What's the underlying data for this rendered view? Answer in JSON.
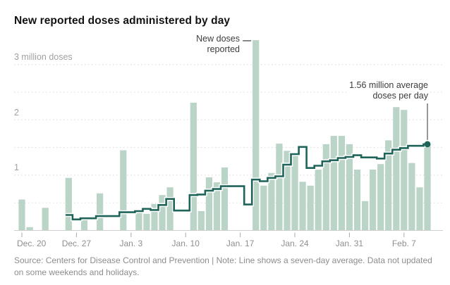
{
  "title": "New reported doses administered by day",
  "chart_data": {
    "type": "bar",
    "title": "New reported doses administered by day",
    "unit": "million doses",
    "ylim": [
      0,
      3.5
    ],
    "grid": true,
    "y_gridlines": [
      0.5,
      1,
      1.5,
      2,
      2.5,
      3
    ],
    "y_tick_labels": [
      {
        "value": 3,
        "label": "3 million doses"
      },
      {
        "value": 2,
        "label": "2"
      },
      {
        "value": 1,
        "label": "1"
      }
    ],
    "x_tick_labels": [
      {
        "index": 0,
        "label": "Dec. 20"
      },
      {
        "index": 7,
        "label": "Dec. 27"
      },
      {
        "index": 14,
        "label": "Jan. 3"
      },
      {
        "index": 21,
        "label": "Jan. 10"
      },
      {
        "index": 28,
        "label": "Jan. 17"
      },
      {
        "index": 35,
        "label": "Jan. 24"
      },
      {
        "index": 42,
        "label": "Jan. 31"
      },
      {
        "index": 49,
        "label": "Feb. 7"
      }
    ],
    "categories": [
      "Dec. 20",
      "Dec. 21",
      "Dec. 22",
      "Dec. 23",
      "Dec. 24",
      "Dec. 25",
      "Dec. 26",
      "Dec. 27",
      "Dec. 28",
      "Dec. 29",
      "Dec. 30",
      "Dec. 31",
      "Jan. 1",
      "Jan. 2",
      "Jan. 3",
      "Jan. 4",
      "Jan. 5",
      "Jan. 6",
      "Jan. 7",
      "Jan. 8",
      "Jan. 9",
      "Jan. 10",
      "Jan. 11",
      "Jan. 12",
      "Jan. 13",
      "Jan. 14",
      "Jan. 15",
      "Jan. 16",
      "Jan. 17",
      "Jan. 18",
      "Jan. 19",
      "Jan. 20",
      "Jan. 21",
      "Jan. 22",
      "Jan. 23",
      "Jan. 24",
      "Jan. 25",
      "Jan. 26",
      "Jan. 27",
      "Jan. 28",
      "Jan. 29",
      "Jan. 30",
      "Jan. 31",
      "Feb. 1",
      "Feb. 2",
      "Feb. 3",
      "Feb. 4",
      "Feb. 5",
      "Feb. 6",
      "Feb. 7",
      "Feb. 8",
      "Feb. 9",
      "Feb. 10"
    ],
    "series": [
      {
        "name": "New reported doses",
        "type": "bar",
        "values": [
          0.56,
          0.06,
          null,
          0.41,
          null,
          null,
          0.95,
          null,
          0.2,
          null,
          0.67,
          null,
          null,
          1.45,
          null,
          0.33,
          0.3,
          0.48,
          0.64,
          0.78,
          null,
          null,
          2.31,
          0.35,
          0.96,
          0.87,
          1.14,
          null,
          null,
          null,
          3.44,
          0.81,
          1.04,
          1.57,
          1.44,
          1.38,
          0.88,
          0.81,
          1.1,
          1.56,
          1.71,
          1.71,
          1.56,
          1.1,
          0.53,
          1.1,
          1.2,
          1.63,
          2.23,
          2.18,
          1.22,
          0.78,
          1.57
        ]
      },
      {
        "name": "Seven-day average",
        "type": "line",
        "values": [
          null,
          null,
          null,
          null,
          null,
          null,
          0.28,
          0.2,
          0.22,
          0.22,
          0.26,
          0.26,
          0.26,
          0.33,
          0.33,
          0.35,
          0.39,
          0.37,
          0.46,
          0.57,
          0.36,
          0.36,
          0.64,
          0.65,
          0.72,
          0.75,
          0.8,
          0.8,
          0.8,
          0.47,
          0.92,
          0.89,
          0.95,
          0.98,
          1.19,
          1.38,
          1.51,
          1.13,
          1.17,
          1.25,
          1.27,
          1.31,
          1.33,
          1.36,
          1.32,
          1.32,
          1.3,
          1.39,
          1.46,
          1.49,
          1.53,
          1.53,
          1.56
        ]
      }
    ],
    "annotations": [
      {
        "id": "new-doses",
        "lines": [
          "New doses",
          "reported"
        ],
        "target": "Jan. 19"
      },
      {
        "id": "average",
        "lines": [
          "1.56 million average",
          "doses per day"
        ],
        "target": "Feb. 10",
        "value": 1.56
      }
    ]
  },
  "colors": {
    "bar": "#bad4c7",
    "line": "#1f6458",
    "grid": "#d9d9d9",
    "axis": "#cfcfcf",
    "tick": "#a9a9a9",
    "leader": "#757575",
    "annotation_dash": "#4a4a4a",
    "background": "#ffffff"
  },
  "footer": {
    "source": "Source: Centers for Disease Control and Prevention | Note: Line shows a seven-day average. Data not updated on some weekends and holidays."
  }
}
